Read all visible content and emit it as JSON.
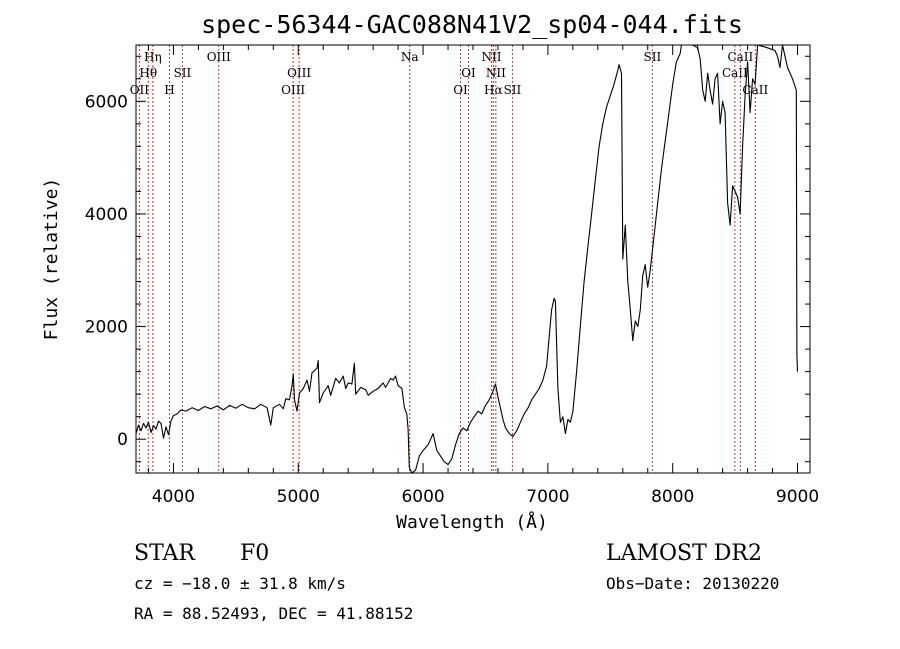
{
  "chart_data": {
    "type": "line",
    "title": "spec-56344-GAC088N41V2_sp04-044.fits",
    "xlabel": "Wavelength (Å)",
    "ylabel": "Flux (relative)",
    "xlim": [
      3700,
      9100
    ],
    "ylim": [
      -600,
      7000
    ],
    "xticks": [
      4000,
      5000,
      6000,
      7000,
      8000,
      9000
    ],
    "yticks": [
      0,
      2000,
      4000,
      6000
    ],
    "grid": false,
    "series": [
      {
        "points": [
          [
            3700,
            100
          ],
          [
            3720,
            250
          ],
          [
            3740,
            150
          ],
          [
            3760,
            280
          ],
          [
            3780,
            200
          ],
          [
            3800,
            300
          ],
          [
            3820,
            120
          ],
          [
            3840,
            240
          ],
          [
            3860,
            180
          ],
          [
            3880,
            320
          ],
          [
            3900,
            280
          ],
          [
            3920,
            20
          ],
          [
            3940,
            220
          ],
          [
            3960,
            80
          ],
          [
            3980,
            320
          ],
          [
            4000,
            420
          ],
          [
            4030,
            450
          ],
          [
            4060,
            520
          ],
          [
            4100,
            500
          ],
          [
            4150,
            560
          ],
          [
            4200,
            510
          ],
          [
            4250,
            580
          ],
          [
            4300,
            540
          ],
          [
            4350,
            590
          ],
          [
            4400,
            520
          ],
          [
            4450,
            600
          ],
          [
            4500,
            550
          ],
          [
            4550,
            620
          ],
          [
            4600,
            560
          ],
          [
            4650,
            540
          ],
          [
            4700,
            620
          ],
          [
            4750,
            560
          ],
          [
            4780,
            250
          ],
          [
            4800,
            560
          ],
          [
            4850,
            620
          ],
          [
            4880,
            540
          ],
          [
            4900,
            720
          ],
          [
            4930,
            700
          ],
          [
            4950,
            950
          ],
          [
            4960,
            1150
          ],
          [
            4970,
            700
          ],
          [
            4990,
            500
          ],
          [
            5010,
            820
          ],
          [
            5040,
            900
          ],
          [
            5070,
            1050
          ],
          [
            5090,
            850
          ],
          [
            5110,
            1180
          ],
          [
            5130,
            1220
          ],
          [
            5150,
            1260
          ],
          [
            5160,
            1400
          ],
          [
            5170,
            650
          ],
          [
            5200,
            820
          ],
          [
            5240,
            950
          ],
          [
            5260,
            780
          ],
          [
            5300,
            1080
          ],
          [
            5330,
            1000
          ],
          [
            5360,
            1120
          ],
          [
            5380,
            900
          ],
          [
            5400,
            1000
          ],
          [
            5430,
            980
          ],
          [
            5450,
            1350
          ],
          [
            5460,
            800
          ],
          [
            5500,
            920
          ],
          [
            5540,
            880
          ],
          [
            5560,
            780
          ],
          [
            5600,
            850
          ],
          [
            5640,
            900
          ],
          [
            5680,
            1000
          ],
          [
            5700,
            920
          ],
          [
            5740,
            1080
          ],
          [
            5760,
            1050
          ],
          [
            5780,
            1120
          ],
          [
            5800,
            950
          ],
          [
            5830,
            900
          ],
          [
            5850,
            560
          ],
          [
            5870,
            450
          ],
          [
            5880,
            180
          ],
          [
            5890,
            -500
          ],
          [
            5910,
            -600
          ],
          [
            5940,
            -550
          ],
          [
            5970,
            -300
          ],
          [
            6000,
            -200
          ],
          [
            6040,
            -100
          ],
          [
            6080,
            100
          ],
          [
            6110,
            -200
          ],
          [
            6140,
            -300
          ],
          [
            6170,
            -400
          ],
          [
            6200,
            -450
          ],
          [
            6230,
            -350
          ],
          [
            6260,
            -100
          ],
          [
            6290,
            100
          ],
          [
            6320,
            200
          ],
          [
            6350,
            150
          ],
          [
            6380,
            300
          ],
          [
            6410,
            400
          ],
          [
            6440,
            500
          ],
          [
            6470,
            450
          ],
          [
            6500,
            600
          ],
          [
            6530,
            700
          ],
          [
            6560,
            850
          ],
          [
            6580,
            980
          ],
          [
            6600,
            750
          ],
          [
            6620,
            550
          ],
          [
            6640,
            350
          ],
          [
            6660,
            200
          ],
          [
            6690,
            100
          ],
          [
            6720,
            50
          ],
          [
            6750,
            150
          ],
          [
            6780,
            300
          ],
          [
            6810,
            450
          ],
          [
            6840,
            550
          ],
          [
            6870,
            700
          ],
          [
            6900,
            800
          ],
          [
            6930,
            900
          ],
          [
            6960,
            1050
          ],
          [
            6990,
            1300
          ],
          [
            7010,
            1800
          ],
          [
            7030,
            2300
          ],
          [
            7050,
            2500
          ],
          [
            7060,
            2450
          ],
          [
            7080,
            900
          ],
          [
            7100,
            300
          ],
          [
            7120,
            400
          ],
          [
            7140,
            100
          ],
          [
            7160,
            350
          ],
          [
            7180,
            300
          ],
          [
            7200,
            500
          ],
          [
            7230,
            1200
          ],
          [
            7260,
            2000
          ],
          [
            7290,
            2800
          ],
          [
            7320,
            3400
          ],
          [
            7350,
            4000
          ],
          [
            7380,
            4600
          ],
          [
            7410,
            5200
          ],
          [
            7440,
            5600
          ],
          [
            7470,
            5900
          ],
          [
            7500,
            6100
          ],
          [
            7530,
            6300
          ],
          [
            7560,
            6550
          ],
          [
            7570,
            6650
          ],
          [
            7590,
            6500
          ],
          [
            7600,
            3200
          ],
          [
            7620,
            3800
          ],
          [
            7640,
            2800
          ],
          [
            7660,
            2300
          ],
          [
            7680,
            1750
          ],
          [
            7700,
            2100
          ],
          [
            7720,
            2000
          ],
          [
            7740,
            2300
          ],
          [
            7760,
            2900
          ],
          [
            7780,
            3100
          ],
          [
            7800,
            2700
          ],
          [
            7820,
            3000
          ],
          [
            7850,
            3600
          ],
          [
            7880,
            4200
          ],
          [
            7910,
            4800
          ],
          [
            7940,
            5300
          ],
          [
            7970,
            5800
          ],
          [
            8000,
            6300
          ],
          [
            8030,
            6700
          ],
          [
            8060,
            6850
          ],
          [
            8070,
            7000
          ],
          [
            8120,
            7000
          ],
          [
            8160,
            7000
          ],
          [
            8200,
            6950
          ],
          [
            8220,
            6750
          ],
          [
            8240,
            6200
          ],
          [
            8260,
            6000
          ],
          [
            8280,
            6500
          ],
          [
            8300,
            6200
          ],
          [
            8320,
            5950
          ],
          [
            8340,
            6400
          ],
          [
            8360,
            6500
          ],
          [
            8380,
            5600
          ],
          [
            8400,
            6000
          ],
          [
            8420,
            5800
          ],
          [
            8440,
            4200
          ],
          [
            8460,
            3800
          ],
          [
            8480,
            4500
          ],
          [
            8500,
            4400
          ],
          [
            8520,
            4300
          ],
          [
            8540,
            4000
          ],
          [
            8560,
            5200
          ],
          [
            8580,
            6100
          ],
          [
            8600,
            6700
          ],
          [
            8620,
            5800
          ],
          [
            8640,
            6400
          ],
          [
            8660,
            6300
          ],
          [
            8680,
            7000
          ],
          [
            8760,
            6950
          ],
          [
            8820,
            6900
          ],
          [
            8840,
            6800
          ],
          [
            8860,
            6600
          ],
          [
            8880,
            7000
          ],
          [
            8920,
            6600
          ],
          [
            8960,
            6400
          ],
          [
            8990,
            6200
          ],
          [
            8995,
            1500
          ],
          [
            9000,
            1200
          ]
        ]
      }
    ],
    "emission_lines": [
      {
        "label": "OII",
        "x": 3727,
        "row": 3
      },
      {
        "label": "Hθ",
        "x": 3798,
        "row": 2
      },
      {
        "label": "Hη",
        "x": 3835,
        "row": 1
      },
      {
        "label": "H",
        "x": 3968,
        "row": 3
      },
      {
        "label": "SII",
        "x": 4072,
        "row": 2
      },
      {
        "label": "OIII",
        "x": 4363,
        "row": 1
      },
      {
        "label": "OIII",
        "x": 4959,
        "row": 3
      },
      {
        "label": "OIII",
        "x": 5007,
        "row": 2
      },
      {
        "label": "Na",
        "x": 5893,
        "row": 1
      },
      {
        "label": "OI",
        "x": 6300,
        "row": 3
      },
      {
        "label": "OI",
        "x": 6364,
        "row": 2
      },
      {
        "label": "NII",
        "x": 6548,
        "row": 1
      },
      {
        "label": "Hα",
        "x": 6563,
        "row": 3
      },
      {
        "label": "NII",
        "x": 6583,
        "row": 2
      },
      {
        "label": "SII",
        "x": 6716,
        "row": 3
      },
      {
        "label": "SII",
        "x": 7837,
        "row": 1
      },
      {
        "label": "CaII",
        "x": 8498,
        "row": 2
      },
      {
        "label": "CaII",
        "x": 8542,
        "row": 1
      },
      {
        "label": "CaII",
        "x": 8662,
        "row": 3
      }
    ]
  },
  "info": {
    "class": "STAR",
    "subclass": "F0",
    "release": "LAMOST DR2",
    "cz": "cz = −18.0 ± 31.8 km/s",
    "obs_date": "Obs−Date: 20130220",
    "radec": "RA =  88.52493, DEC =  41.88152"
  },
  "colors": {
    "line_marker": "#c0392b",
    "spectrum": "#000000"
  }
}
